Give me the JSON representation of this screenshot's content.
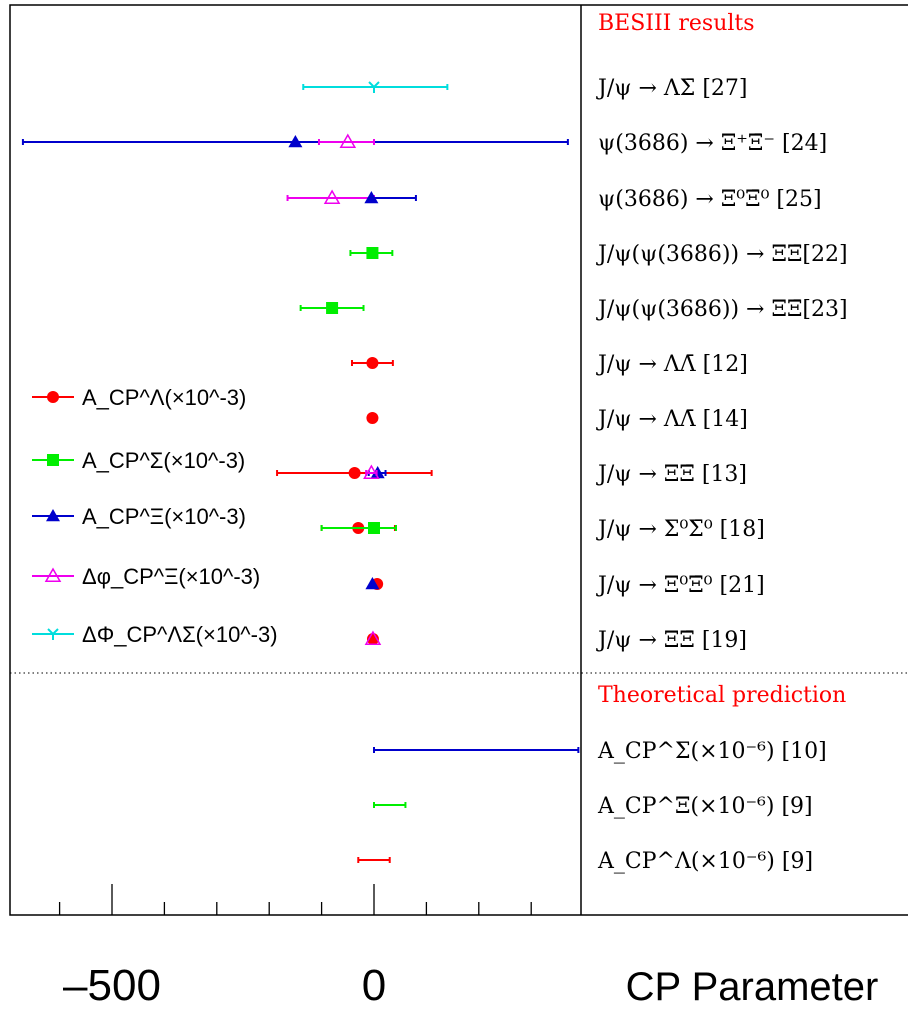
{
  "chart_data": {
    "type": "forest",
    "xlabel": "CP Parameter",
    "x_tick_labels": [
      {
        "value": -500,
        "text": "–500"
      },
      {
        "value": 0,
        "text": "0"
      }
    ],
    "xlim": [
      -700,
      400
    ],
    "sections": {
      "experimental": "BESIII results",
      "theory": "Theoretical prediction"
    },
    "section_color": "#ff0000",
    "rows": [
      {
        "label": "J/ψ → ΛΣ̄ [27]"
      },
      {
        "label": "ψ(3686) → Ξ⁺Ξ̄⁻ [24]"
      },
      {
        "label": "ψ(3686) → Ξ⁰Ξ̄⁰ [25]"
      },
      {
        "label": "J/ψ(ψ(3686)) → ΞΞ̄[22]"
      },
      {
        "label": "J/ψ(ψ(3686)) → ΞΞ̄[23]"
      },
      {
        "label": "J/ψ → ΛΛ̄ [12]"
      },
      {
        "label": "J/ψ → ΛΛ̄ [14]"
      },
      {
        "label": "J/ψ → ΞΞ̄ [13]"
      },
      {
        "label": "J/ψ → Σ⁰Σ̄⁰ [18]"
      },
      {
        "label": "J/ψ → Ξ⁰Ξ̄⁰ [21]"
      },
      {
        "label": "J/ψ → ΞΞ̄ [19]"
      },
      {
        "label": "A_CP^Σ(×10⁻⁶) [10]"
      },
      {
        "label": "A_CP^Ξ(×10⁻⁶) [9]"
      },
      {
        "label": "A_CP^Λ(×10⁻⁶) [9]"
      }
    ],
    "series": [
      {
        "name": "A_CP^Λ(×10^-3)",
        "color": "#ff0000",
        "marker": "circle"
      },
      {
        "name": "A_CP^Σ(×10^-3)",
        "color": "#00ee00",
        "marker": "square"
      },
      {
        "name": "A_CP^Ξ(×10^-3)",
        "color": "#0000cc",
        "marker": "triangle"
      },
      {
        "name": "Δφ_CP^Ξ(×10^-3)",
        "color": "#ee00ee",
        "marker": "triangle-open"
      },
      {
        "name": "ΔΦ_CP^ΛΣ(×10^-3)",
        "color": "#00dddd",
        "marker": "star"
      }
    ],
    "points": [
      {
        "row": 0,
        "series": 4,
        "value": 0,
        "lo": -135,
        "hi": 140
      },
      {
        "row": 1,
        "series": 2,
        "value": -150,
        "lo": -670,
        "hi": 370
      },
      {
        "row": 1,
        "series": 3,
        "value": -50,
        "lo": -105,
        "hi": 0
      },
      {
        "row": 2,
        "series": 3,
        "value": -80,
        "lo": -165,
        "hi": 0
      },
      {
        "row": 2,
        "series": 2,
        "value": -5,
        "lo": -5,
        "hi": 80
      },
      {
        "row": 3,
        "series": 1,
        "value": -3,
        "lo": -45,
        "hi": 35
      },
      {
        "row": 4,
        "series": 1,
        "value": -80,
        "lo": -140,
        "hi": -20
      },
      {
        "row": 5,
        "series": 0,
        "value": -3,
        "lo": -42,
        "hi": 36
      },
      {
        "row": 6,
        "series": 0,
        "value": -3,
        "lo": -3,
        "hi": -3
      },
      {
        "row": 7,
        "series": 0,
        "value": -37,
        "lo": -185,
        "hi": 110
      },
      {
        "row": 7,
        "series": 2,
        "value": 7,
        "lo": -10,
        "hi": 22
      },
      {
        "row": 7,
        "series": 3,
        "value": -5,
        "lo": -15,
        "hi": 5
      },
      {
        "row": 8,
        "series": 0,
        "value": -30,
        "lo": -100,
        "hi": 40
      },
      {
        "row": 8,
        "series": 1,
        "value": 0,
        "lo": -100,
        "hi": 42
      },
      {
        "row": 9,
        "series": 0,
        "value": 6,
        "lo": 6,
        "hi": 6
      },
      {
        "row": 9,
        "series": 2,
        "value": -3,
        "lo": -3,
        "hi": -3
      },
      {
        "row": 10,
        "series": 0,
        "value": -2,
        "lo": -2,
        "hi": -2
      },
      {
        "row": 10,
        "series": 3,
        "value": -2,
        "lo": -2,
        "hi": -2
      },
      {
        "row": 11,
        "series": 2,
        "value": null,
        "lo": 0,
        "hi": 390
      },
      {
        "row": 12,
        "series": 1,
        "value": null,
        "lo": 0,
        "hi": 60
      },
      {
        "row": 13,
        "series": 0,
        "value": null,
        "lo": -30,
        "hi": 30
      }
    ],
    "grid": false,
    "legend_position": "left"
  }
}
